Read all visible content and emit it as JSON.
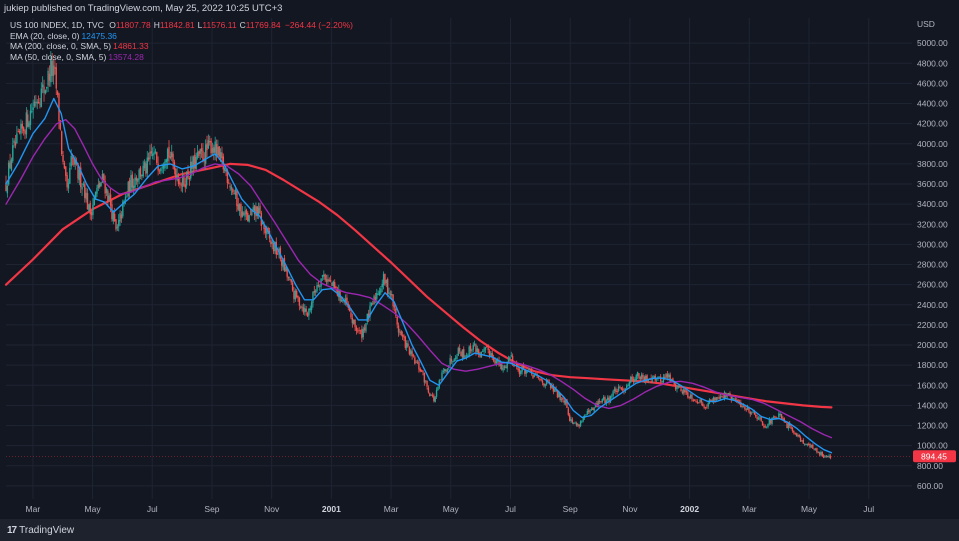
{
  "header": {
    "publisher_line": "jukiep published on TradingView.com, May 25, 2022 10:25 UTC+3"
  },
  "legend": {
    "symbol": "US 100 INDEX, 1D, TVC",
    "ohlc": [
      {
        "key": "O",
        "value": "11807.78"
      },
      {
        "key": "H",
        "value": "11842.81"
      },
      {
        "key": "L",
        "value": "11576.11"
      },
      {
        "key": "C",
        "value": "11769.84"
      }
    ],
    "change": "−264.44 (−2.20%)",
    "indicators": [
      {
        "label": "EMA (20, close, 0)",
        "value": "12475.36",
        "color": "#2196f3"
      },
      {
        "label": "MA (200, close, 0, SMA, 5)",
        "value": "14861.33",
        "color": "#f23645"
      },
      {
        "label": "MA (50, close, 0, SMA, 5)",
        "value": "13574.28",
        "color": "#9c27b0"
      }
    ]
  },
  "footer": {
    "brand": "TradingView",
    "logo_icon": "tradingview-logo-icon"
  },
  "colors": {
    "background": "#131722",
    "grid": "#1f2433",
    "up": "#26a69a",
    "down": "#ef5350",
    "ema20": "#2196f3",
    "ma200": "#f23645",
    "ma50": "#9c27b0",
    "last_price_badge": "#f23645"
  },
  "chart_data": {
    "type": "candlestick",
    "symbol": "US 100 INDEX, 1D, TVC",
    "y_axis": {
      "currency": "USD",
      "ticks": [
        "5000.00",
        "4800.00",
        "4600.00",
        "4400.00",
        "4200.00",
        "4000.00",
        "3800.00",
        "3600.00",
        "3400.00",
        "3200.00",
        "3000.00",
        "2800.00",
        "2600.00",
        "2400.00",
        "2200.00",
        "2000.00",
        "1800.00",
        "1600.00",
        "1400.00",
        "1200.00",
        "1000.00",
        "800.00",
        "600.00"
      ],
      "range": [
        470,
        5250
      ],
      "last_price_label": "894.45",
      "last_price": 894.45,
      "grid": true
    },
    "x_axis": {
      "ticks": [
        {
          "label": "Mar",
          "month_index": 2,
          "bold": false
        },
        {
          "label": "May",
          "month_index": 4,
          "bold": false
        },
        {
          "label": "Jul",
          "month_index": 6,
          "bold": false
        },
        {
          "label": "Sep",
          "month_index": 8,
          "bold": false
        },
        {
          "label": "Nov",
          "month_index": 10,
          "bold": false
        },
        {
          "label": "2001",
          "month_index": 12,
          "bold": true
        },
        {
          "label": "Mar",
          "month_index": 14,
          "bold": false
        },
        {
          "label": "May",
          "month_index": 16,
          "bold": false
        },
        {
          "label": "Jul",
          "month_index": 18,
          "bold": false
        },
        {
          "label": "Sep",
          "month_index": 20,
          "bold": false
        },
        {
          "label": "Nov",
          "month_index": 22,
          "bold": false
        },
        {
          "label": "2002",
          "month_index": 24,
          "bold": true
        },
        {
          "label": "Mar",
          "month_index": 26,
          "bold": false
        },
        {
          "label": "May",
          "month_index": 28,
          "bold": false
        },
        {
          "label": "Jul",
          "month_index": 30,
          "bold": false
        }
      ],
      "range_month_index": [
        1.1,
        31.45
      ]
    },
    "close_path": [
      [
        1.1,
        3600
      ],
      [
        1.3,
        3900
      ],
      [
        1.6,
        4100
      ],
      [
        1.9,
        4300
      ],
      [
        2.1,
        4450
      ],
      [
        2.4,
        4550
      ],
      [
        2.6,
        4750
      ],
      [
        2.75,
        4650
      ],
      [
        2.9,
        4200
      ],
      [
        3.0,
        3800
      ],
      [
        3.15,
        3500
      ],
      [
        3.3,
        3850
      ],
      [
        3.5,
        3700
      ],
      [
        3.7,
        3600
      ],
      [
        3.9,
        3300
      ],
      [
        4.1,
        3500
      ],
      [
        4.35,
        3650
      ],
      [
        4.6,
        3400
      ],
      [
        4.8,
        3100
      ],
      [
        5.0,
        3350
      ],
      [
        5.25,
        3600
      ],
      [
        5.5,
        3700
      ],
      [
        5.8,
        3750
      ],
      [
        6.0,
        3900
      ],
      [
        6.25,
        3800
      ],
      [
        6.5,
        3950
      ],
      [
        6.75,
        3750
      ],
      [
        7.0,
        3600
      ],
      [
        7.3,
        3750
      ],
      [
        7.5,
        3850
      ],
      [
        7.75,
        3900
      ],
      [
        8.0,
        4000
      ],
      [
        8.25,
        3850
      ],
      [
        8.5,
        3700
      ],
      [
        8.75,
        3500
      ],
      [
        9.0,
        3300
      ],
      [
        9.25,
        3250
      ],
      [
        9.5,
        3350
      ],
      [
        9.75,
        3150
      ],
      [
        10.0,
        3000
      ],
      [
        10.25,
        2900
      ],
      [
        10.5,
        2700
      ],
      [
        10.75,
        2500
      ],
      [
        11.0,
        2400
      ],
      [
        11.2,
        2300
      ],
      [
        11.5,
        2600
      ],
      [
        11.75,
        2700
      ],
      [
        12.0,
        2600
      ],
      [
        12.25,
        2500
      ],
      [
        12.5,
        2400
      ],
      [
        12.75,
        2200
      ],
      [
        13.0,
        2100
      ],
      [
        13.25,
        2300
      ],
      [
        13.5,
        2500
      ],
      [
        13.75,
        2650
      ],
      [
        14.0,
        2500
      ],
      [
        14.25,
        2150
      ],
      [
        14.5,
        2000
      ],
      [
        14.75,
        1850
      ],
      [
        15.0,
        1750
      ],
      [
        15.25,
        1550
      ],
      [
        15.45,
        1450
      ],
      [
        15.7,
        1700
      ],
      [
        16.0,
        1850
      ],
      [
        16.25,
        1950
      ],
      [
        16.5,
        1900
      ],
      [
        16.75,
        2000
      ],
      [
        17.0,
        1900
      ],
      [
        17.25,
        1950
      ],
      [
        17.5,
        1850
      ],
      [
        17.75,
        1750
      ],
      [
        18.0,
        1900
      ],
      [
        18.25,
        1750
      ],
      [
        18.5,
        1750
      ],
      [
        18.75,
        1700
      ],
      [
        19.0,
        1650
      ],
      [
        19.3,
        1600
      ],
      [
        19.6,
        1500
      ],
      [
        19.85,
        1450
      ],
      [
        20.0,
        1250
      ],
      [
        20.25,
        1200
      ],
      [
        20.5,
        1300
      ],
      [
        20.75,
        1350
      ],
      [
        21.0,
        1450
      ],
      [
        21.25,
        1450
      ],
      [
        21.5,
        1550
      ],
      [
        21.75,
        1550
      ],
      [
        22.0,
        1650
      ],
      [
        22.25,
        1700
      ],
      [
        22.5,
        1650
      ],
      [
        22.75,
        1700
      ],
      [
        23.0,
        1650
      ],
      [
        23.25,
        1700
      ],
      [
        23.5,
        1600
      ],
      [
        23.75,
        1550
      ],
      [
        24.0,
        1500
      ],
      [
        24.25,
        1450
      ],
      [
        24.5,
        1400
      ],
      [
        24.75,
        1450
      ],
      [
        25.0,
        1500
      ],
      [
        25.25,
        1500
      ],
      [
        25.5,
        1450
      ],
      [
        25.75,
        1400
      ],
      [
        26.0,
        1350
      ],
      [
        26.25,
        1300
      ],
      [
        26.5,
        1200
      ],
      [
        26.75,
        1250
      ],
      [
        27.0,
        1300
      ],
      [
        27.25,
        1200
      ],
      [
        27.5,
        1150
      ],
      [
        27.75,
        1050
      ],
      [
        28.0,
        1000
      ],
      [
        28.25,
        950
      ],
      [
        28.5,
        900
      ],
      [
        28.75,
        894.45
      ]
    ],
    "ema20_path": [
      [
        1.1,
        3600
      ],
      [
        1.5,
        3800
      ],
      [
        2.0,
        4100
      ],
      [
        2.4,
        4250
      ],
      [
        2.7,
        4450
      ],
      [
        2.95,
        4300
      ],
      [
        3.2,
        3950
      ],
      [
        3.5,
        3800
      ],
      [
        3.8,
        3600
      ],
      [
        4.1,
        3450
      ],
      [
        4.4,
        3420
      ],
      [
        4.7,
        3320
      ],
      [
        5.0,
        3400
      ],
      [
        5.4,
        3500
      ],
      [
        5.8,
        3650
      ],
      [
        6.2,
        3780
      ],
      [
        6.6,
        3800
      ],
      [
        7.0,
        3750
      ],
      [
        7.4,
        3780
      ],
      [
        7.8,
        3850
      ],
      [
        8.1,
        3900
      ],
      [
        8.4,
        3800
      ],
      [
        8.7,
        3620
      ],
      [
        9.0,
        3450
      ],
      [
        9.3,
        3350
      ],
      [
        9.6,
        3280
      ],
      [
        9.9,
        3120
      ],
      [
        10.2,
        2950
      ],
      [
        10.5,
        2780
      ],
      [
        10.8,
        2600
      ],
      [
        11.1,
        2450
      ],
      [
        11.4,
        2450
      ],
      [
        11.7,
        2550
      ],
      [
        12.0,
        2560
      ],
      [
        12.3,
        2490
      ],
      [
        12.6,
        2380
      ],
      [
        12.9,
        2250
      ],
      [
        13.2,
        2250
      ],
      [
        13.5,
        2400
      ],
      [
        13.8,
        2520
      ],
      [
        14.1,
        2430
      ],
      [
        14.4,
        2220
      ],
      [
        14.7,
        2000
      ],
      [
        15.0,
        1830
      ],
      [
        15.3,
        1650
      ],
      [
        15.6,
        1600
      ],
      [
        15.9,
        1720
      ],
      [
        16.2,
        1840
      ],
      [
        16.5,
        1870
      ],
      [
        16.8,
        1920
      ],
      [
        17.1,
        1900
      ],
      [
        17.4,
        1880
      ],
      [
        17.7,
        1830
      ],
      [
        18.0,
        1820
      ],
      [
        18.3,
        1780
      ],
      [
        18.6,
        1740
      ],
      [
        18.9,
        1700
      ],
      [
        19.2,
        1650
      ],
      [
        19.5,
        1570
      ],
      [
        19.8,
        1480
      ],
      [
        20.1,
        1350
      ],
      [
        20.4,
        1280
      ],
      [
        20.7,
        1300
      ],
      [
        21.0,
        1380
      ],
      [
        21.3,
        1440
      ],
      [
        21.6,
        1500
      ],
      [
        21.9,
        1560
      ],
      [
        22.2,
        1620
      ],
      [
        22.5,
        1650
      ],
      [
        22.8,
        1670
      ],
      [
        23.1,
        1670
      ],
      [
        23.4,
        1650
      ],
      [
        23.7,
        1600
      ],
      [
        24.0,
        1540
      ],
      [
        24.3,
        1480
      ],
      [
        24.6,
        1440
      ],
      [
        24.9,
        1440
      ],
      [
        25.2,
        1470
      ],
      [
        25.5,
        1450
      ],
      [
        25.8,
        1410
      ],
      [
        26.1,
        1360
      ],
      [
        26.4,
        1290
      ],
      [
        26.7,
        1260
      ],
      [
        27.0,
        1270
      ],
      [
        27.3,
        1230
      ],
      [
        27.6,
        1170
      ],
      [
        27.9,
        1090
      ],
      [
        28.2,
        1020
      ],
      [
        28.5,
        960
      ],
      [
        28.75,
        930
      ]
    ],
    "ma50_path": [
      [
        1.1,
        3400
      ],
      [
        1.6,
        3650
      ],
      [
        2.0,
        3870
      ],
      [
        2.4,
        4050
      ],
      [
        2.8,
        4200
      ],
      [
        3.1,
        4240
      ],
      [
        3.4,
        4150
      ],
      [
        3.7,
        3980
      ],
      [
        4.0,
        3800
      ],
      [
        4.3,
        3650
      ],
      [
        4.6,
        3560
      ],
      [
        4.9,
        3500
      ],
      [
        5.3,
        3520
      ],
      [
        5.7,
        3570
      ],
      [
        6.1,
        3620
      ],
      [
        6.5,
        3640
      ],
      [
        6.9,
        3660
      ],
      [
        7.3,
        3700
      ],
      [
        7.7,
        3760
      ],
      [
        8.1,
        3800
      ],
      [
        8.5,
        3780
      ],
      [
        8.9,
        3700
      ],
      [
        9.3,
        3580
      ],
      [
        9.7,
        3400
      ],
      [
        10.1,
        3220
      ],
      [
        10.5,
        3030
      ],
      [
        10.9,
        2840
      ],
      [
        11.3,
        2700
      ],
      [
        11.7,
        2610
      ],
      [
        12.1,
        2560
      ],
      [
        12.5,
        2520
      ],
      [
        12.9,
        2500
      ],
      [
        13.3,
        2470
      ],
      [
        13.7,
        2400
      ],
      [
        14.1,
        2320
      ],
      [
        14.5,
        2220
      ],
      [
        14.9,
        2090
      ],
      [
        15.3,
        1950
      ],
      [
        15.7,
        1820
      ],
      [
        16.1,
        1760
      ],
      [
        16.5,
        1740
      ],
      [
        16.9,
        1760
      ],
      [
        17.3,
        1790
      ],
      [
        17.7,
        1820
      ],
      [
        18.1,
        1830
      ],
      [
        18.5,
        1800
      ],
      [
        18.9,
        1760
      ],
      [
        19.3,
        1710
      ],
      [
        19.7,
        1640
      ],
      [
        20.1,
        1560
      ],
      [
        20.5,
        1470
      ],
      [
        20.9,
        1400
      ],
      [
        21.3,
        1370
      ],
      [
        21.7,
        1400
      ],
      [
        22.1,
        1460
      ],
      [
        22.5,
        1530
      ],
      [
        22.9,
        1590
      ],
      [
        23.3,
        1630
      ],
      [
        23.7,
        1640
      ],
      [
        24.1,
        1620
      ],
      [
        24.5,
        1580
      ],
      [
        24.9,
        1530
      ],
      [
        25.3,
        1500
      ],
      [
        25.7,
        1480
      ],
      [
        26.1,
        1460
      ],
      [
        26.5,
        1420
      ],
      [
        26.9,
        1360
      ],
      [
        27.3,
        1300
      ],
      [
        27.7,
        1240
      ],
      [
        28.1,
        1170
      ],
      [
        28.5,
        1110
      ],
      [
        28.75,
        1080
      ]
    ],
    "ma200_path": [
      [
        1.1,
        2600
      ],
      [
        2.0,
        2850
      ],
      [
        3.0,
        3150
      ],
      [
        4.0,
        3350
      ],
      [
        5.0,
        3500
      ],
      [
        6.0,
        3600
      ],
      [
        7.0,
        3700
      ],
      [
        8.0,
        3760
      ],
      [
        8.6,
        3800
      ],
      [
        9.2,
        3790
      ],
      [
        9.8,
        3740
      ],
      [
        10.4,
        3640
      ],
      [
        11.0,
        3530
      ],
      [
        11.6,
        3420
      ],
      [
        12.2,
        3290
      ],
      [
        12.8,
        3140
      ],
      [
        13.4,
        2980
      ],
      [
        14.0,
        2820
      ],
      [
        14.6,
        2650
      ],
      [
        15.2,
        2480
      ],
      [
        15.8,
        2330
      ],
      [
        16.4,
        2180
      ],
      [
        17.0,
        2040
      ],
      [
        17.6,
        1920
      ],
      [
        18.2,
        1820
      ],
      [
        18.8,
        1740
      ],
      [
        19.4,
        1700
      ],
      [
        20.0,
        1680
      ],
      [
        20.6,
        1670
      ],
      [
        21.2,
        1660
      ],
      [
        21.8,
        1650
      ],
      [
        22.4,
        1640
      ],
      [
        23.0,
        1620
      ],
      [
        23.6,
        1590
      ],
      [
        24.2,
        1560
      ],
      [
        24.8,
        1530
      ],
      [
        25.4,
        1500
      ],
      [
        26.0,
        1470
      ],
      [
        26.6,
        1440
      ],
      [
        27.2,
        1420
      ],
      [
        27.8,
        1400
      ],
      [
        28.4,
        1385
      ],
      [
        28.75,
        1380
      ]
    ]
  }
}
